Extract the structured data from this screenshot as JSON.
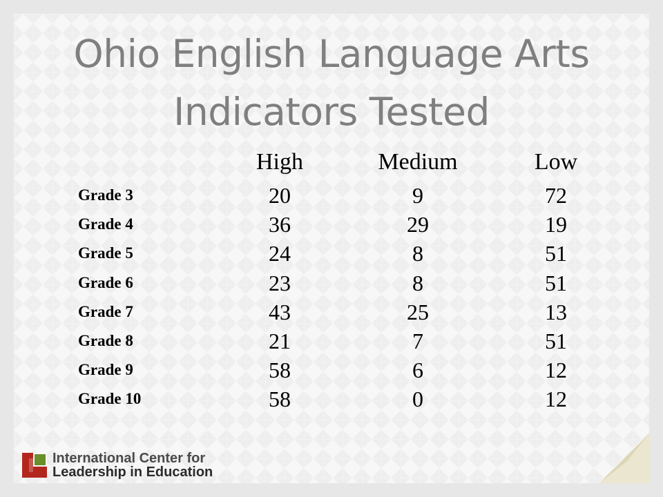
{
  "title": {
    "line1": "Ohio English Language Arts",
    "line2": "Indicators Tested"
  },
  "table": {
    "columns": [
      "High",
      "Medium",
      "Low"
    ],
    "rows": [
      {
        "label": "Grade 3",
        "values": [
          "20",
          "9",
          "72"
        ]
      },
      {
        "label": "Grade 4",
        "values": [
          "36",
          "29",
          "19"
        ]
      },
      {
        "label": "Grade 5",
        "values": [
          "24",
          "8",
          "51"
        ]
      },
      {
        "label": "Grade 6",
        "values": [
          "23",
          "8",
          "51"
        ]
      },
      {
        "label": "Grade 7",
        "values": [
          "43",
          "25",
          "13"
        ]
      },
      {
        "label": "Grade 8",
        "values": [
          "21",
          "7",
          "51"
        ]
      },
      {
        "label": "Grade 9",
        "values": [
          "58",
          "6",
          "12"
        ]
      },
      {
        "label": "Grade 10",
        "values": [
          "58",
          "0",
          "12"
        ]
      }
    ]
  },
  "logo": {
    "line1": "International Center for",
    "line2": "Leadership in Education",
    "colors": {
      "red": "#b3261e",
      "green": "#6a8f2b",
      "gray": "#4a4a4a"
    }
  },
  "colors": {
    "title": "#7f7f7f",
    "corner": "#ddd6b6"
  }
}
